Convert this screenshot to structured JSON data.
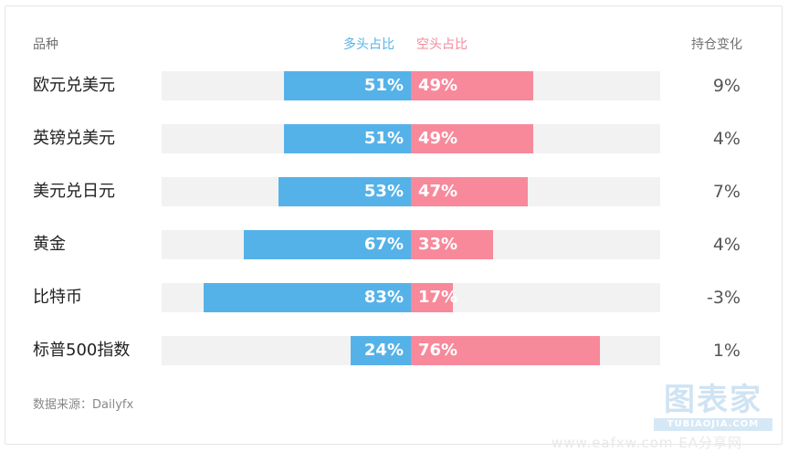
{
  "header": {
    "item_label": "品种",
    "long_label": "多头占比",
    "short_label": "空头占比",
    "change_label": "持仓变化"
  },
  "colors": {
    "long": "#55b2e8",
    "short": "#f7899b",
    "track": "#f2f2f2"
  },
  "chart_data": {
    "type": "bar",
    "categories": [
      "欧元兑美元",
      "英镑兑美元",
      "美元兑日元",
      "黄金",
      "比特币",
      "标普500指数"
    ],
    "series": [
      {
        "name": "多头占比",
        "values": [
          51,
          51,
          53,
          67,
          83,
          24
        ]
      },
      {
        "name": "空头占比",
        "values": [
          49,
          49,
          47,
          33,
          17,
          76
        ]
      }
    ],
    "labels_long": [
      "51%",
      "51%",
      "53%",
      "67%",
      "83%",
      "24%"
    ],
    "labels_short": [
      "49%",
      "49%",
      "47%",
      "33%",
      "17%",
      "76%"
    ],
    "position_change": [
      "9%",
      "4%",
      "7%",
      "4%",
      "-3%",
      "1%"
    ],
    "xlim": [
      -100,
      100
    ]
  },
  "footer": {
    "source": "数据来源：Dailyfx"
  },
  "logo": {
    "main": "图表家",
    "sub": "TUBIAOJIA.COM",
    "watermark": "www.eafxw.com EA分享网"
  }
}
